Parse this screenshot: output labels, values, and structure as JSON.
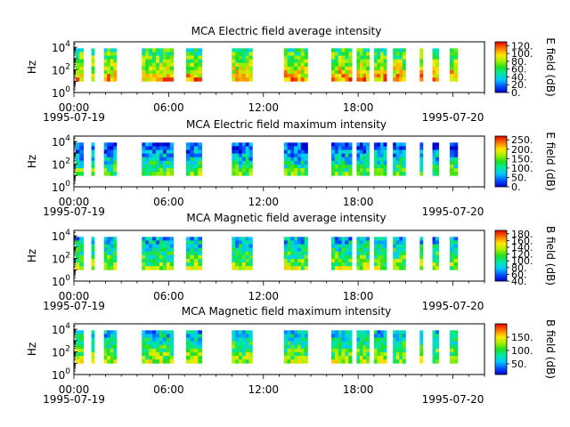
{
  "chart_data": [
    {
      "type": "heatmap",
      "title": "MCA  Electric field average intensity",
      "ylabel": "Hz",
      "y_scale": "log",
      "ylim": [
        1,
        30000
      ],
      "y_ticks": [
        {
          "value": 1,
          "base": "10",
          "exp": "0"
        },
        {
          "value": 100,
          "base": "10",
          "exp": "2"
        },
        {
          "value": 10000,
          "base": "10",
          "exp": "4"
        }
      ],
      "x_ticks": [
        "00:00",
        "06:00",
        "12:00",
        "18:00"
      ],
      "x_start_label": "1995-07-19",
      "x_end_label": "1995-07-20",
      "colorbar": {
        "label": "E field (dB)",
        "range": [
          0,
          130
        ],
        "ticks": [
          "0.",
          "20.",
          "40.",
          "60.",
          "80.",
          "100.",
          "120."
        ],
        "tick_values": [
          0,
          20,
          40,
          60,
          80,
          100,
          120
        ]
      },
      "intensity_level": 0.62,
      "data_intervals_hours": [
        [
          0.1,
          0.6
        ],
        [
          1.1,
          1.3
        ],
        [
          1.9,
          2.7
        ],
        [
          4.3,
          6.3
        ],
        [
          7.1,
          8.1
        ],
        [
          10.0,
          11.3
        ],
        [
          13.3,
          14.8
        ],
        [
          16.3,
          17.6
        ],
        [
          17.9,
          18.7
        ],
        [
          19.0,
          19.8
        ],
        [
          20.2,
          21.0
        ],
        [
          21.9,
          22.1
        ],
        [
          22.7,
          23.1
        ],
        [
          23.8,
          24.3
        ]
      ]
    },
    {
      "type": "heatmap",
      "title": "MCA  Electric field maximum intensity",
      "ylabel": "Hz",
      "y_scale": "log",
      "ylim": [
        1,
        30000
      ],
      "y_ticks": [
        {
          "value": 1,
          "base": "10",
          "exp": "0"
        },
        {
          "value": 100,
          "base": "10",
          "exp": "2"
        },
        {
          "value": 10000,
          "base": "10",
          "exp": "4"
        }
      ],
      "x_ticks": [
        "00:00",
        "06:00",
        "12:00",
        "18:00"
      ],
      "x_start_label": "1995-07-19",
      "x_end_label": "1995-07-20",
      "colorbar": {
        "label": "E field (dB)",
        "range": [
          0,
          270
        ],
        "ticks": [
          "0.",
          "50.",
          "100.",
          "150.",
          "200.",
          "250."
        ],
        "tick_values": [
          0,
          50,
          100,
          150,
          200,
          250
        ]
      },
      "intensity_level": 0.36,
      "data_intervals_hours": [
        [
          0.1,
          0.6
        ],
        [
          1.1,
          1.3
        ],
        [
          1.9,
          2.7
        ],
        [
          4.3,
          6.3
        ],
        [
          7.1,
          8.1
        ],
        [
          10.0,
          11.3
        ],
        [
          13.3,
          14.8
        ],
        [
          16.3,
          17.6
        ],
        [
          17.9,
          18.7
        ],
        [
          19.0,
          19.8
        ],
        [
          20.2,
          21.0
        ],
        [
          21.9,
          22.1
        ],
        [
          22.7,
          23.1
        ],
        [
          23.8,
          24.3
        ]
      ]
    },
    {
      "type": "heatmap",
      "title": "MCA  Magnetic field average intensity",
      "ylabel": "Hz",
      "y_scale": "log",
      "ylim": [
        1,
        30000
      ],
      "y_ticks": [
        {
          "value": 1,
          "base": "10",
          "exp": "0"
        },
        {
          "value": 100,
          "base": "10",
          "exp": "2"
        },
        {
          "value": 10000,
          "base": "10",
          "exp": "4"
        }
      ],
      "x_ticks": [
        "00:00",
        "06:00",
        "12:00",
        "18:00"
      ],
      "x_start_label": "1995-07-19",
      "x_end_label": "1995-07-20",
      "colorbar": {
        "label": "B field (dB)",
        "range": [
          40,
          190
        ],
        "ticks": [
          "40.",
          "60.",
          "80.",
          "100.",
          "120.",
          "140.",
          "160.",
          "180."
        ],
        "tick_values": [
          40,
          60,
          80,
          100,
          120,
          140,
          160,
          180
        ]
      },
      "intensity_level": 0.42,
      "data_intervals_hours": [
        [
          0.1,
          0.6
        ],
        [
          1.1,
          1.3
        ],
        [
          1.9,
          2.7
        ],
        [
          4.3,
          6.3
        ],
        [
          7.1,
          8.1
        ],
        [
          10.0,
          11.3
        ],
        [
          13.3,
          14.8
        ],
        [
          16.3,
          17.6
        ],
        [
          17.9,
          18.7
        ],
        [
          19.0,
          19.8
        ],
        [
          20.2,
          21.0
        ],
        [
          21.9,
          22.1
        ],
        [
          22.7,
          23.1
        ],
        [
          23.8,
          24.3
        ]
      ]
    },
    {
      "type": "heatmap",
      "title": "MCA  Magnetic field maximum intensity",
      "ylabel": "Hz",
      "y_scale": "log",
      "ylim": [
        1,
        30000
      ],
      "y_ticks": [
        {
          "value": 1,
          "base": "10",
          "exp": "0"
        },
        {
          "value": 100,
          "base": "10",
          "exp": "2"
        },
        {
          "value": 10000,
          "base": "10",
          "exp": "4"
        }
      ],
      "x_ticks": [
        "00:00",
        "06:00",
        "12:00",
        "18:00"
      ],
      "x_start_label": "1995-07-19",
      "x_end_label": "1995-07-20",
      "colorbar": {
        "label": "B field (dB)",
        "range": [
          10,
          200
        ],
        "ticks": [
          "50.",
          "100.",
          "150."
        ],
        "tick_values": [
          50,
          100,
          150
        ]
      },
      "intensity_level": 0.44,
      "data_intervals_hours": [
        [
          0.1,
          0.6
        ],
        [
          1.1,
          1.3
        ],
        [
          1.9,
          2.7
        ],
        [
          4.3,
          6.3
        ],
        [
          7.1,
          8.1
        ],
        [
          10.0,
          11.3
        ],
        [
          13.3,
          14.8
        ],
        [
          16.3,
          17.6
        ],
        [
          17.9,
          18.7
        ],
        [
          19.0,
          19.8
        ],
        [
          20.2,
          21.0
        ],
        [
          21.9,
          22.1
        ],
        [
          22.7,
          23.1
        ],
        [
          23.8,
          24.3
        ]
      ]
    }
  ]
}
